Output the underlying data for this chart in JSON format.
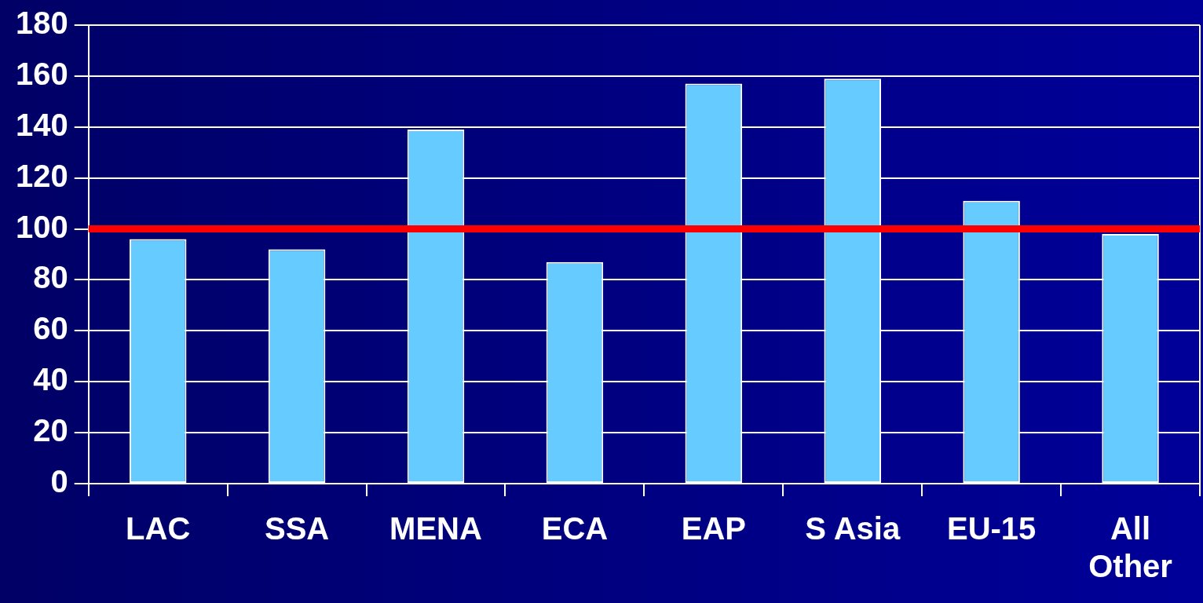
{
  "chart_data": {
    "type": "bar",
    "categories": [
      "LAC",
      "SSA",
      "MENA",
      "ECA",
      "EAP",
      "S Asia",
      "EU-15",
      "All Other"
    ],
    "values": [
      96,
      92,
      139,
      87,
      157,
      159,
      111,
      98
    ],
    "color": "#66ccff",
    "ylim": [
      0,
      180
    ],
    "yticks": [
      0,
      20,
      40,
      60,
      80,
      100,
      120,
      140,
      160,
      180
    ],
    "grid": "y",
    "ref_lines": [
      {
        "axis": "y",
        "value": 100,
        "color": "#ff0000"
      }
    ]
  }
}
